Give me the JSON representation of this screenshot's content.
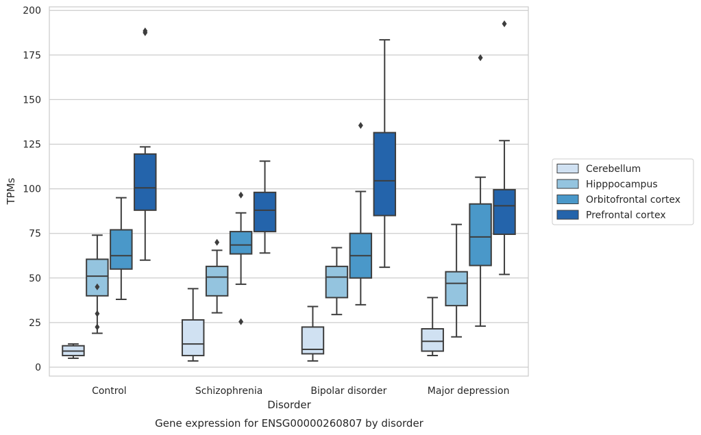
{
  "chart_data": {
    "type": "boxplot",
    "title": "Gene expression for ENSG00000260807 by disorder",
    "xlabel": "Disorder",
    "ylabel": "TPMs",
    "ylim": [
      -5,
      202
    ],
    "yticks": [
      0,
      25,
      50,
      75,
      100,
      125,
      150,
      175,
      200
    ],
    "categories": [
      "Control",
      "Schizophrenia",
      "Bipolar disorder",
      "Major depression"
    ],
    "grid": "horizontal",
    "legend_position": "right",
    "series": [
      {
        "name": "Cerebellum",
        "color": "#d0e1f2",
        "boxes": [
          {
            "whislo": 5,
            "q1": 6.5,
            "med": 9,
            "q3": 12,
            "whishi": 13,
            "fliers": []
          },
          {
            "whislo": 3.5,
            "q1": 6.5,
            "med": 13,
            "q3": 26.5,
            "whishi": 44,
            "fliers": []
          },
          {
            "whislo": 3.5,
            "q1": 7.5,
            "med": 10,
            "q3": 22.5,
            "whishi": 34,
            "fliers": []
          },
          {
            "whislo": 6.5,
            "q1": 9,
            "med": 14.5,
            "q3": 21.5,
            "whishi": 39,
            "fliers": []
          }
        ]
      },
      {
        "name": "Hipppocampus",
        "color": "#94c4df",
        "boxes": [
          {
            "whislo": 19,
            "q1": 40,
            "med": 51,
            "q3": 60.5,
            "whishi": 74,
            "fliers": [
              22.5,
              30,
              45
            ]
          },
          {
            "whislo": 30.5,
            "q1": 40,
            "med": 50.5,
            "q3": 56.5,
            "whishi": 65.5,
            "fliers": [
              70
            ]
          },
          {
            "whislo": 29.5,
            "q1": 39,
            "med": 50.5,
            "q3": 56.5,
            "whishi": 67,
            "fliers": []
          },
          {
            "whislo": 17,
            "q1": 34.5,
            "med": 47,
            "q3": 53.5,
            "whishi": 80,
            "fliers": []
          }
        ]
      },
      {
        "name": "Orbitofrontal cortex",
        "color": "#4a98c9",
        "boxes": [
          {
            "whislo": 38,
            "q1": 55,
            "med": 62.5,
            "q3": 77,
            "whishi": 95,
            "fliers": []
          },
          {
            "whislo": 46.5,
            "q1": 63.5,
            "med": 68.5,
            "q3": 76,
            "whishi": 86.5,
            "fliers": [
              25.5,
              96.5
            ]
          },
          {
            "whislo": 35,
            "q1": 50,
            "med": 62.5,
            "q3": 75,
            "whishi": 98.5,
            "fliers": [
              135.5
            ]
          },
          {
            "whislo": 23,
            "q1": 57,
            "med": 73,
            "q3": 91.5,
            "whishi": 106.5,
            "fliers": [
              173.5
            ]
          }
        ]
      },
      {
        "name": "Prefrontal cortex",
        "color": "#2464ab",
        "boxes": [
          {
            "whislo": 60,
            "q1": 88,
            "med": 100.5,
            "q3": 119.5,
            "whishi": 123.5,
            "fliers": [
              187.5,
              188.5
            ]
          },
          {
            "whislo": 64,
            "q1": 76,
            "med": 88,
            "q3": 98,
            "whishi": 115.5,
            "fliers": []
          },
          {
            "whislo": 56,
            "q1": 85,
            "med": 104.5,
            "q3": 131.5,
            "whishi": 183.5,
            "fliers": []
          },
          {
            "whislo": 52,
            "q1": 74.5,
            "med": 90.5,
            "q3": 99.5,
            "whishi": 127,
            "fliers": [
              192.5
            ]
          }
        ]
      }
    ]
  }
}
